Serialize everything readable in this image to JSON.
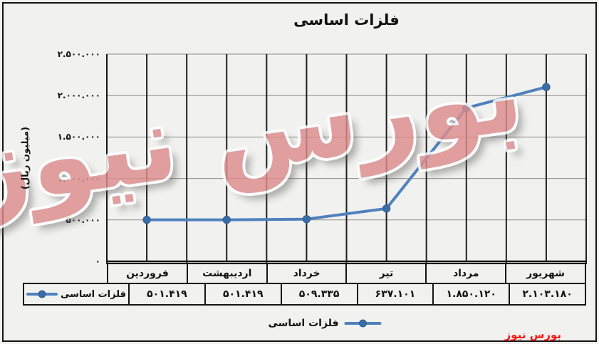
{
  "title": "فلزات اساسی",
  "chart_data": {
    "type": "line",
    "title": "فلزات اساسی",
    "categories": [
      "فروردین",
      "اردیبهشت",
      "خرداد",
      "تیر",
      "مرداد",
      "شهریور"
    ],
    "series": [
      {
        "name": "فلزات اساسی",
        "values": [
          501419,
          501419,
          509335,
          637101,
          1850120,
          2103180
        ],
        "display_values": [
          "۵۰۱.۴۱۹",
          "۵۰۱.۴۱۹",
          "۵۰۹.۳۳۵",
          "۶۳۷.۱۰۱",
          "۱.۸۵۰.۱۲۰",
          "۲.۱۰۳.۱۸۰"
        ],
        "line_color": "#4f81bd",
        "marker_color": "#3a6ca8"
      }
    ],
    "ylabel": "(میلیون ریال)",
    "ylim": [
      0,
      2500000
    ],
    "y_tick_step": 500000,
    "y_tick_labels": [
      "۲.۵۰۰.۰۰۰",
      "۲.۰۰۰.۰۰۰",
      "۱.۵۰۰.۰۰۰",
      "۱.۰۰۰.۰۰۰",
      "۵۰۰.۰۰۰",
      "۰"
    ],
    "grid": "both",
    "legend_position": "bottom",
    "has_data_table": true
  },
  "legend": {
    "label": "فلزات اساسی"
  },
  "data_table": {
    "row_header": "فلزات اساسی"
  },
  "watermark": {
    "text": "بورس نیوز",
    "color": "#dd8d8d"
  },
  "footer": {
    "text": "بورس نیوز",
    "color": "#f81512"
  },
  "colors": {
    "background": "#f1f1ef",
    "frame_border": "#141414",
    "h_gridline": "#8c8c8c",
    "v_gridline": "#1f1f1f",
    "axis_line": "#141414",
    "text": "#111111"
  }
}
